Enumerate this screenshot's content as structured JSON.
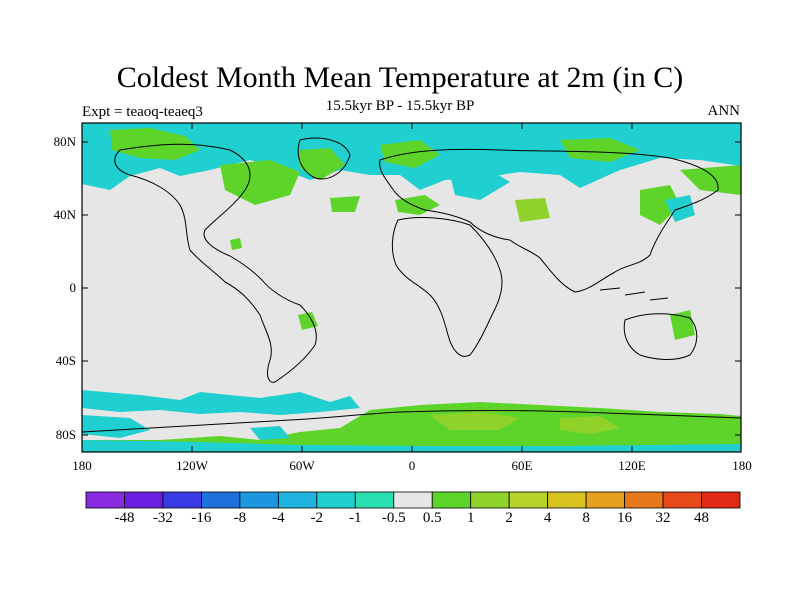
{
  "title": "Coldest Month Mean Temperature at 2m (in C)",
  "experiment_label": "Expt = teaoq-teaeq3",
  "period_label": "15.5kyr BP - 15.5kyr BP",
  "season_label": "ANN",
  "latitude_ticks": [
    "80N",
    "40N",
    "0",
    "40S",
    "80S"
  ],
  "longitude_ticks": [
    "180",
    "120W",
    "60W",
    "0",
    "60E",
    "120E",
    "180"
  ],
  "colorbar": {
    "labels": [
      "-48",
      "-32",
      "-16",
      "-8",
      "-4",
      "-2",
      "-1",
      "-0.5",
      "0.5",
      "1",
      "2",
      "4",
      "8",
      "16",
      "32",
      "48"
    ],
    "colors": [
      "#8a2be2",
      "#6a1fe0",
      "#3a3ae6",
      "#1f6fdc",
      "#1c96e0",
      "#20b4e0",
      "#20cfd0",
      "#2ae0b0",
      "#e6e6e6",
      "#5ed42a",
      "#8ed22a",
      "#b6d22a",
      "#d8c21e",
      "#e6a21c",
      "#e8781c",
      "#e64a1a",
      "#e02a16"
    ]
  },
  "colors": {
    "ocean_neutral": "#e6e6e6",
    "cyan_anomaly": "#20cfd0",
    "green_anomaly": "#5ed42a",
    "light_green_anomaly": "#8ed22a"
  }
}
